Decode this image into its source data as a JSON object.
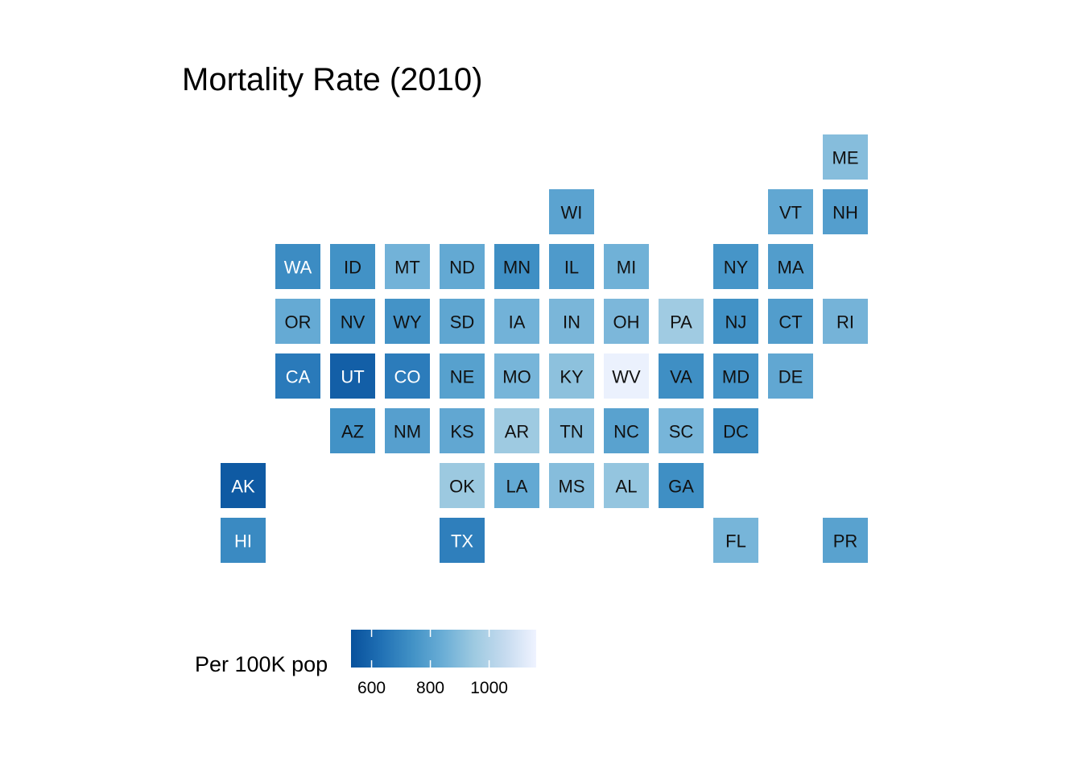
{
  "chart_data": {
    "type": "heatmap",
    "title": "Mortality Rate (2010)",
    "legend": {
      "title": "Per 100K pop",
      "placement": "bottom-left",
      "range": [
        530,
        1160
      ],
      "ticks": [
        600,
        800,
        1000
      ],
      "colors": [
        "#08519c",
        "#2171b5",
        "#4292c6",
        "#6baed6",
        "#9ecae1",
        "#c6dbef",
        "#eff3ff"
      ]
    },
    "tiles": [
      {
        "state": "ME",
        "col": 11,
        "row": 0,
        "value": 900
      },
      {
        "state": "WI",
        "col": 6,
        "row": 1,
        "value": 805
      },
      {
        "state": "VT",
        "col": 10,
        "row": 1,
        "value": 820
      },
      {
        "state": "NH",
        "col": 11,
        "row": 1,
        "value": 785
      },
      {
        "state": "WA",
        "col": 1,
        "row": 2,
        "value": 720
      },
      {
        "state": "ID",
        "col": 2,
        "row": 2,
        "value": 740
      },
      {
        "state": "MT",
        "col": 3,
        "row": 2,
        "value": 860
      },
      {
        "state": "ND",
        "col": 4,
        "row": 2,
        "value": 825
      },
      {
        "state": "MN",
        "col": 5,
        "row": 2,
        "value": 730
      },
      {
        "state": "IL",
        "col": 6,
        "row": 2,
        "value": 770
      },
      {
        "state": "MI",
        "col": 7,
        "row": 2,
        "value": 855
      },
      {
        "state": "NY",
        "col": 9,
        "row": 2,
        "value": 750
      },
      {
        "state": "MA",
        "col": 10,
        "row": 2,
        "value": 780
      },
      {
        "state": "OR",
        "col": 1,
        "row": 3,
        "value": 830
      },
      {
        "state": "NV",
        "col": 2,
        "row": 3,
        "value": 735
      },
      {
        "state": "WY",
        "col": 3,
        "row": 3,
        "value": 745
      },
      {
        "state": "SD",
        "col": 4,
        "row": 3,
        "value": 815
      },
      {
        "state": "IA",
        "col": 5,
        "row": 3,
        "value": 860
      },
      {
        "state": "IN",
        "col": 6,
        "row": 3,
        "value": 875
      },
      {
        "state": "OH",
        "col": 7,
        "row": 3,
        "value": 880
      },
      {
        "state": "PA",
        "col": 8,
        "row": 3,
        "value": 955
      },
      {
        "state": "NJ",
        "col": 9,
        "row": 3,
        "value": 740
      },
      {
        "state": "CT",
        "col": 10,
        "row": 3,
        "value": 780
      },
      {
        "state": "RI",
        "col": 11,
        "row": 3,
        "value": 865
      },
      {
        "state": "CA",
        "col": 1,
        "row": 4,
        "value": 665
      },
      {
        "state": "UT",
        "col": 2,
        "row": 4,
        "value": 575
      },
      {
        "state": "CO",
        "col": 3,
        "row": 4,
        "value": 670
      },
      {
        "state": "NE",
        "col": 4,
        "row": 4,
        "value": 795
      },
      {
        "state": "MO",
        "col": 5,
        "row": 4,
        "value": 870
      },
      {
        "state": "KY",
        "col": 6,
        "row": 4,
        "value": 915
      },
      {
        "state": "WV",
        "col": 7,
        "row": 4,
        "value": 1150
      },
      {
        "state": "VA",
        "col": 8,
        "row": 4,
        "value": 730
      },
      {
        "state": "MD",
        "col": 9,
        "row": 4,
        "value": 745
      },
      {
        "state": "DE",
        "col": 10,
        "row": 4,
        "value": 820
      },
      {
        "state": "AZ",
        "col": 2,
        "row": 5,
        "value": 740
      },
      {
        "state": "NM",
        "col": 3,
        "row": 5,
        "value": 790
      },
      {
        "state": "KS",
        "col": 4,
        "row": 5,
        "value": 820
      },
      {
        "state": "AR",
        "col": 5,
        "row": 5,
        "value": 950
      },
      {
        "state": "TN",
        "col": 6,
        "row": 5,
        "value": 895
      },
      {
        "state": "NC",
        "col": 7,
        "row": 5,
        "value": 800
      },
      {
        "state": "SC",
        "col": 8,
        "row": 5,
        "value": 870
      },
      {
        "state": "DC",
        "col": 9,
        "row": 5,
        "value": 735
      },
      {
        "state": "AK",
        "col": 0,
        "row": 6,
        "value": 560
      },
      {
        "state": "OK",
        "col": 4,
        "row": 6,
        "value": 945
      },
      {
        "state": "LA",
        "col": 5,
        "row": 6,
        "value": 825
      },
      {
        "state": "MS",
        "col": 6,
        "row": 6,
        "value": 900
      },
      {
        "state": "AL",
        "col": 7,
        "row": 6,
        "value": 930
      },
      {
        "state": "GA",
        "col": 8,
        "row": 6,
        "value": 730
      },
      {
        "state": "HI",
        "col": 0,
        "row": 7,
        "value": 715
      },
      {
        "state": "TX",
        "col": 4,
        "row": 7,
        "value": 680
      },
      {
        "state": "FL",
        "col": 9,
        "row": 7,
        "value": 870
      },
      {
        "state": "PR",
        "col": 11,
        "row": 7,
        "value": 800
      }
    ]
  }
}
